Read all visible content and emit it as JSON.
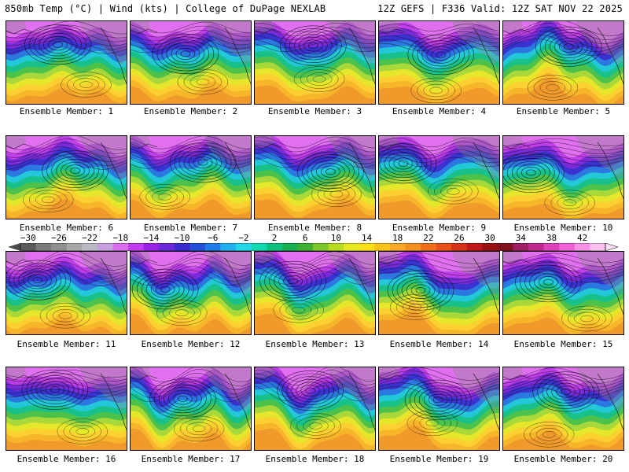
{
  "header": {
    "left_text": "850mb Temp (°C) | Wind (kts) | College of DuPage NEXLAB",
    "right_text": "12Z GEFS | F336 Valid: 12Z SAT NOV 22 2025"
  },
  "colorbar": {
    "labels": [
      "-30",
      "-26",
      "-22",
      "-18",
      "-14",
      "-10",
      "-6",
      "-2",
      "2",
      "6",
      "10",
      "14",
      "18",
      "22",
      "26",
      "30",
      "34",
      "38",
      "42"
    ],
    "bins": [
      "#5a5a5a",
      "#7a7a7a",
      "#8f8f8f",
      "#a8a8a8",
      "#b9b9c6",
      "#c8a0e0",
      "#dc6cf0",
      "#c13cf0",
      "#9a22e8",
      "#6a28d8",
      "#3a2ad0",
      "#2450d8",
      "#1f7ce8",
      "#22b0f0",
      "#22d8e8",
      "#12d8b0",
      "#0cc080",
      "#18b050",
      "#3cb030",
      "#7cc828",
      "#b8dc20",
      "#e8e820",
      "#fbe018",
      "#fbc218",
      "#f7a828",
      "#f39020",
      "#ef7018",
      "#e85018",
      "#d83018",
      "#c01818",
      "#9a1010",
      "#801020",
      "#a01c60",
      "#c02890",
      "#e040b8",
      "#f060d8",
      "#f890e8",
      "#fbc0f0"
    ]
  },
  "members": [
    {
      "label": "Ensemble Member: 1"
    },
    {
      "label": "Ensemble Member: 2"
    },
    {
      "label": "Ensemble Member: 3"
    },
    {
      "label": "Ensemble Member: 4"
    },
    {
      "label": "Ensemble Member: 5"
    },
    {
      "label": "Ensemble Member: 6"
    },
    {
      "label": "Ensemble Member: 7"
    },
    {
      "label": "Ensemble Member: 8"
    },
    {
      "label": "Ensemble Member: 9"
    },
    {
      "label": "Ensemble Member: 10"
    },
    {
      "label": "Ensemble Member: 11"
    },
    {
      "label": "Ensemble Member: 12"
    },
    {
      "label": "Ensemble Member: 13"
    },
    {
      "label": "Ensemble Member: 14"
    },
    {
      "label": "Ensemble Member: 15"
    },
    {
      "label": "Ensemble Member: 16"
    },
    {
      "label": "Ensemble Member: 17"
    },
    {
      "label": "Ensemble Member: 18"
    },
    {
      "label": "Ensemble Member: 19"
    },
    {
      "label": "Ensemble Member: 20"
    }
  ]
}
